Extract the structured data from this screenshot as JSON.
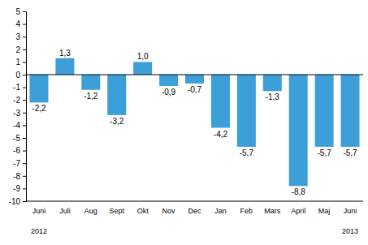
{
  "chart_data": {
    "type": "bar",
    "categories": [
      "Juni",
      "Juli",
      "Aug",
      "Sept",
      "Okt",
      "Nov",
      "Dec",
      "Jan",
      "Feb",
      "Mars",
      "April",
      "Maj",
      "Juni"
    ],
    "values": [
      -2.2,
      1.3,
      -1.2,
      -3.2,
      1.0,
      -0.9,
      -0.7,
      -4.2,
      -5.7,
      -1.3,
      -8.8,
      -5.7,
      -5.7
    ],
    "value_labels": [
      "-2,2",
      "1,3",
      "-1,2",
      "-3,2",
      "1,0",
      "-0,9",
      "-0,7",
      "-4,2",
      "-5,7",
      "-1,3",
      "-8,8",
      "-5,7",
      "-5,7"
    ],
    "data_labels": true,
    "color": "#3c9fd8",
    "ylim": [
      -10,
      5
    ],
    "yticks": [
      -10,
      -9,
      -8,
      -7,
      -6,
      -5,
      -4,
      -3,
      -2,
      -1,
      0,
      1,
      2,
      3,
      4,
      5
    ],
    "grid": false,
    "annotations": [
      "2012",
      "2013"
    ]
  }
}
